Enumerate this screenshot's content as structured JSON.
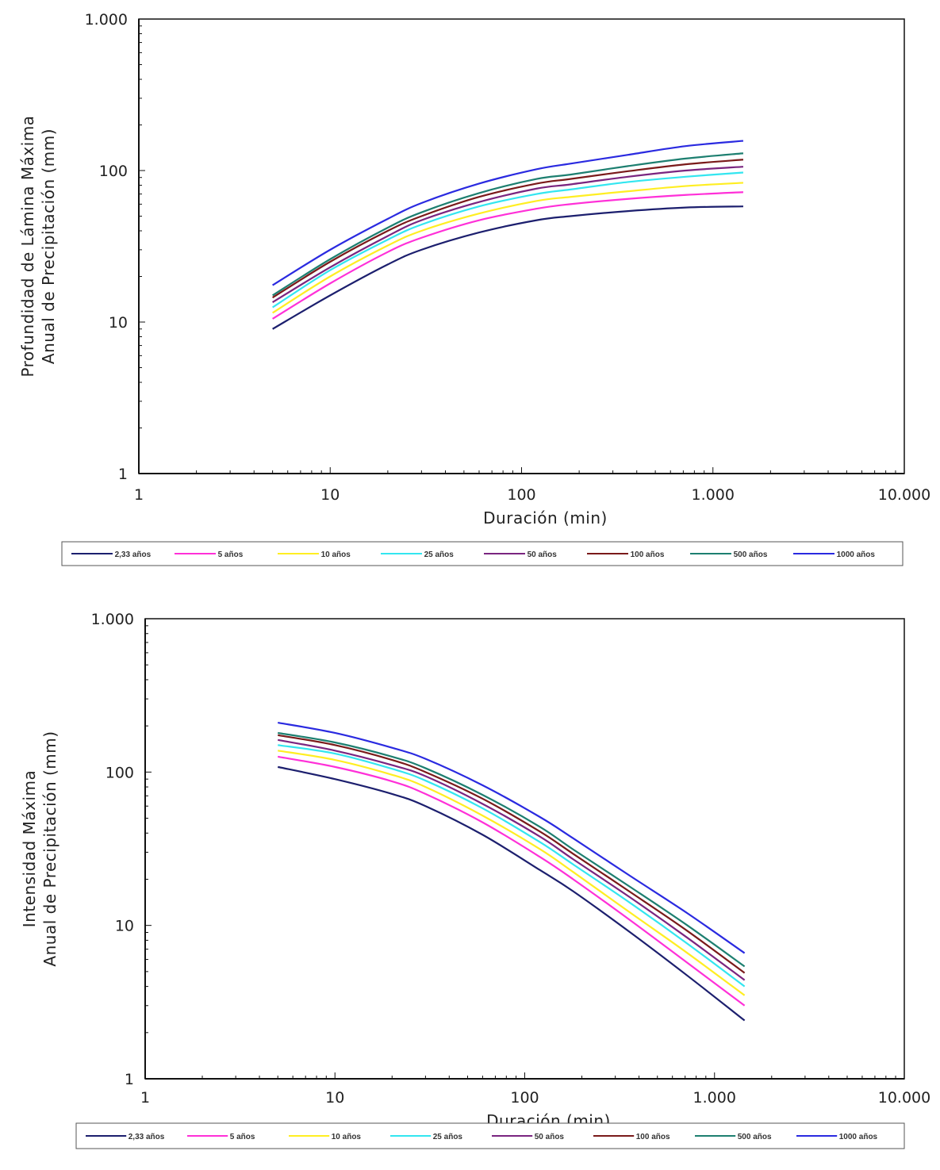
{
  "chart_data": [
    {
      "type": "line",
      "title": "",
      "xlabel": "Duración (min)",
      "ylabel": [
        "Profundidad de Lámina Máxima",
        "Anual de Precipitación (mm)"
      ],
      "xscale": "log",
      "yscale": "log",
      "xlim": [
        1,
        10000
      ],
      "ylim": [
        1,
        1000
      ],
      "xticks": [
        {
          "value": 1,
          "label": "1"
        },
        {
          "value": 10,
          "label": "10"
        },
        {
          "value": 100,
          "label": "100"
        },
        {
          "value": 1000,
          "label": "1.000"
        },
        {
          "value": 10000,
          "label": "10.000"
        }
      ],
      "yticks": [
        {
          "value": 1,
          "label": "1"
        },
        {
          "value": 10,
          "label": "10"
        },
        {
          "value": 100,
          "label": "100"
        },
        {
          "value": 1000,
          "label": "1.000"
        }
      ],
      "grid": false,
      "legend": "bottom",
      "x": [
        5,
        10,
        20,
        30,
        60,
        120,
        180,
        360,
        720,
        1440
      ],
      "series": [
        {
          "name": "2,33 años",
          "color": "#1c1f6e",
          "values": [
            9,
            15,
            24,
            30,
            39,
            47,
            50,
            54,
            57,
            58
          ]
        },
        {
          "name": "5 años",
          "color": "#ff30d8",
          "values": [
            10.5,
            18,
            29,
            36,
            47,
            56,
            60,
            65,
            69,
            72
          ]
        },
        {
          "name": "10 años",
          "color": "#ffee22",
          "values": [
            11.5,
            20,
            32,
            40,
            52,
            63,
            67,
            73,
            79,
            83
          ]
        },
        {
          "name": "25 años",
          "color": "#33e6f0",
          "values": [
            12.5,
            22,
            35,
            44,
            58,
            70,
            75,
            84,
            91,
            97
          ]
        },
        {
          "name": "50 años",
          "color": "#7a2580",
          "values": [
            13.5,
            23,
            37,
            47,
            62,
            76,
            81,
            91,
            100,
            106
          ]
        },
        {
          "name": "100 años",
          "color": "#7a1a1a",
          "values": [
            14.5,
            25,
            40,
            50,
            67,
            82,
            88,
            99,
            110,
            118
          ]
        },
        {
          "name": "500 años",
          "color": "#1d7f70",
          "values": [
            15,
            26,
            42,
            53,
            71,
            88,
            94,
            107,
            120,
            130
          ]
        },
        {
          "name": "1000 años",
          "color": "#2a2ae0",
          "values": [
            17.5,
            30,
            48,
            61,
            82,
            102,
            111,
            127,
            145,
            157
          ]
        }
      ]
    },
    {
      "type": "line",
      "title": "",
      "xlabel": "Duración (min)",
      "ylabel": [
        "Intensidad Máxima",
        "Anual de Precipitación (mm)"
      ],
      "xscale": "log",
      "yscale": "log",
      "xlim": [
        1,
        10000
      ],
      "ylim": [
        1,
        1000
      ],
      "xticks": [
        {
          "value": 1,
          "label": "1"
        },
        {
          "value": 10,
          "label": "10"
        },
        {
          "value": 100,
          "label": "100"
        },
        {
          "value": 1000,
          "label": "1.000"
        },
        {
          "value": 10000,
          "label": "10.000"
        }
      ],
      "yticks": [
        {
          "value": 1,
          "label": "1"
        },
        {
          "value": 10,
          "label": "10"
        },
        {
          "value": 100,
          "label": "100"
        },
        {
          "value": 1000,
          "label": "1.000"
        }
      ],
      "grid": false,
      "legend": "bottom",
      "x": [
        5,
        10,
        20,
        30,
        60,
        120,
        180,
        360,
        720,
        1440
      ],
      "series": [
        {
          "name": "2,33 años",
          "color": "#1c1f6e",
          "values": [
            108,
            90,
            72,
            60,
            39,
            23,
            16.7,
            9,
            4.7,
            2.4
          ]
        },
        {
          "name": "5 años",
          "color": "#ff30d8",
          "values": [
            126,
            108,
            87,
            72,
            47,
            28,
            20,
            10.8,
            5.7,
            3.0
          ]
        },
        {
          "name": "10 años",
          "color": "#ffee22",
          "values": [
            138,
            120,
            96,
            80,
            52,
            31.5,
            22.3,
            12.1,
            6.6,
            3.5
          ]
        },
        {
          "name": "25 años",
          "color": "#33e6f0",
          "values": [
            150,
            132,
            105,
            88,
            58,
            35,
            25,
            14,
            7.6,
            4.0
          ]
        },
        {
          "name": "50 años",
          "color": "#7a2580",
          "values": [
            162,
            138,
            111,
            94,
            62,
            38,
            27,
            15.2,
            8.3,
            4.4
          ]
        },
        {
          "name": "100 años",
          "color": "#7a1a1a",
          "values": [
            174,
            150,
            120,
            100,
            67,
            41,
            29.3,
            16.5,
            9.2,
            4.9
          ]
        },
        {
          "name": "500 años",
          "color": "#1d7f70",
          "values": [
            180,
            156,
            126,
            106,
            71,
            44,
            31.3,
            17.8,
            10,
            5.4
          ]
        },
        {
          "name": "1000 años",
          "color": "#2a2ae0",
          "values": [
            210,
            180,
            144,
            122,
            82,
            51,
            37,
            21,
            12,
            6.6
          ]
        }
      ]
    }
  ]
}
